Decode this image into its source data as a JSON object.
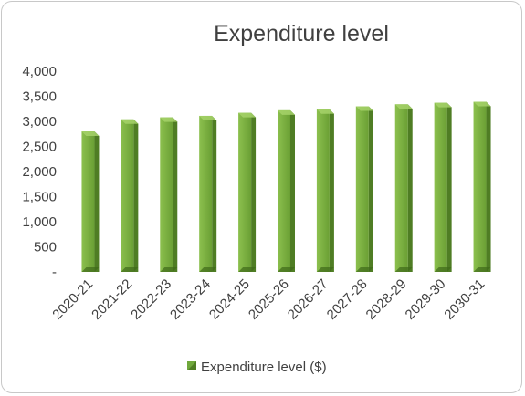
{
  "chart_data": {
    "type": "bar",
    "title": "Expenditure level",
    "categories": [
      "2020-21",
      "2021-22",
      "2022-23",
      "2023-24",
      "2024-25",
      "2025-26",
      "2026-27",
      "2027-28",
      "2028-29",
      "2029-30",
      "2030-31"
    ],
    "series": [
      {
        "name": "Expenditure level ($)",
        "values": [
          2800,
          3040,
          3080,
          3110,
          3170,
          3220,
          3240,
          3300,
          3340,
          3370,
          3390
        ],
        "color": "#70a83c"
      }
    ],
    "y_tick_labels": [
      "-",
      "500",
      "1,000",
      "1,500",
      "2,000",
      "2,500",
      "3,000",
      "3,500",
      "4,000"
    ],
    "ylim": [
      0,
      4000
    ],
    "legend_position": "bottom",
    "grid": false
  }
}
